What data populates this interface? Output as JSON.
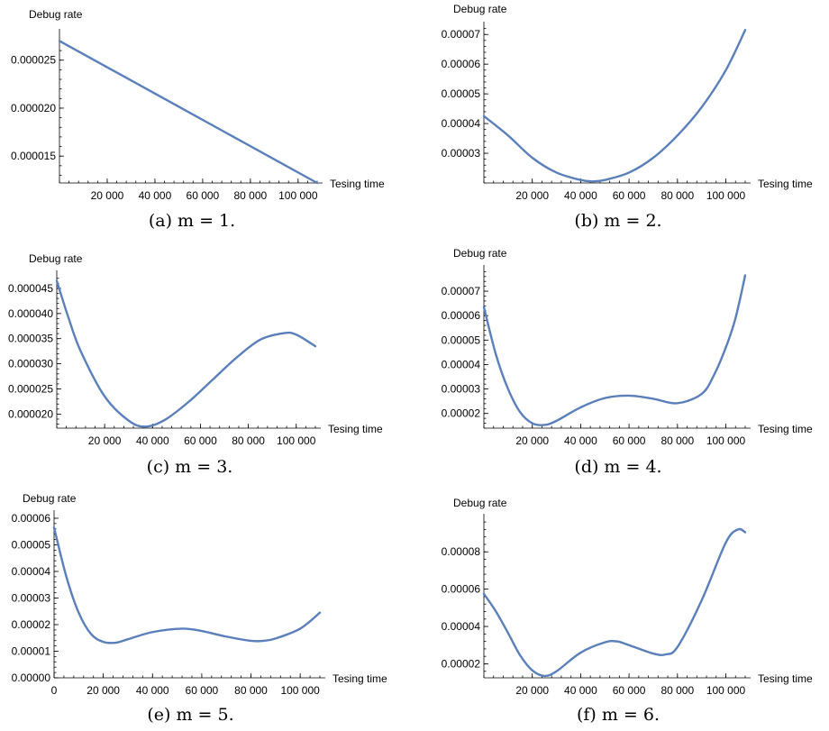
{
  "chart_data": [
    {
      "type": "line",
      "caption": "(a) m = 1.",
      "xlabel": "Tesing time",
      "ylabel": "Debug rate",
      "xlim": [
        0,
        108000
      ],
      "ylim": [
        1.22e-05,
        2.77e-05
      ],
      "xticks": [
        20000,
        40000,
        60000,
        80000,
        100000
      ],
      "xtick_labels": [
        "20 000",
        "40 000",
        "60 000",
        "80 000",
        "100 000"
      ],
      "yticks": [
        1.5e-05,
        2e-05,
        2.5e-05
      ],
      "ytick_labels": [
        "0.000015",
        "0.000020",
        "0.000025"
      ],
      "series": [
        {
          "x": [
            0,
            108000
          ],
          "y": [
            2.7e-05,
            1.22e-05
          ]
        }
      ]
    },
    {
      "type": "line",
      "caption": "(b) m = 2.",
      "xlabel": "Tesing time",
      "ylabel": "Debug rate",
      "xlim": [
        0,
        108000
      ],
      "ylim": [
        2e-05,
        7.25e-05
      ],
      "xticks": [
        20000,
        40000,
        60000,
        80000,
        100000
      ],
      "xtick_labels": [
        "20 000",
        "40 000",
        "60 000",
        "80 000",
        "100 000"
      ],
      "yticks": [
        3e-05,
        4e-05,
        5e-05,
        6e-05,
        7e-05
      ],
      "ytick_labels": [
        "0.00003",
        "0.00004",
        "0.00005",
        "0.00006",
        "0.00007"
      ],
      "series": [
        {
          "x": [
            0,
            10000,
            20000,
            30000,
            40000,
            45000,
            50000,
            60000,
            70000,
            80000,
            90000,
            100000,
            108000
          ],
          "y": [
            4.25e-05,
            3.6e-05,
            2.85e-05,
            2.35e-05,
            2.1e-05,
            2.05e-05,
            2.1e-05,
            2.35e-05,
            2.85e-05,
            3.6e-05,
            4.55e-05,
            5.8e-05,
            7.15e-05
          ]
        }
      ]
    },
    {
      "type": "line",
      "caption": "(c) m = 3.",
      "xlabel": "Tesing time",
      "ylabel": "Debug rate",
      "xlim": [
        0,
        108000
      ],
      "ylim": [
        1.72e-05,
        4.75e-05
      ],
      "xticks": [
        20000,
        40000,
        60000,
        80000,
        100000
      ],
      "xtick_labels": [
        "20 000",
        "40 000",
        "60 000",
        "80 000",
        "100 000"
      ],
      "yticks": [
        2e-05,
        2.5e-05,
        3e-05,
        3.5e-05,
        4e-05,
        4.5e-05
      ],
      "ytick_labels": [
        "0.000020",
        "0.000025",
        "0.000030",
        "0.000035",
        "0.000040",
        "0.000045"
      ],
      "series": [
        {
          "x": [
            0,
            5000,
            10000,
            20000,
            30000,
            37000,
            45000,
            55000,
            65000,
            75000,
            85000,
            95000,
            100000,
            108000
          ],
          "y": [
            4.65e-05,
            3.9e-05,
            3.25e-05,
            2.35e-05,
            1.87e-05,
            1.75e-05,
            1.88e-05,
            2.24e-05,
            2.68e-05,
            3.12e-05,
            3.48e-05,
            3.61e-05,
            3.58e-05,
            3.35e-05
          ]
        }
      ]
    },
    {
      "type": "line",
      "caption": "(d) m = 4.",
      "xlabel": "Tesing time",
      "ylabel": "Debug rate",
      "xlim": [
        0,
        108000
      ],
      "ylim": [
        1.4e-05,
        7.85e-05
      ],
      "xticks": [
        20000,
        40000,
        60000,
        80000,
        100000
      ],
      "xtick_labels": [
        "20 000",
        "40 000",
        "60 000",
        "80 000",
        "100 000"
      ],
      "yticks": [
        2e-05,
        3e-05,
        4e-05,
        5e-05,
        6e-05,
        7e-05
      ],
      "ytick_labels": [
        "0.00002",
        "0.00003",
        "0.00004",
        "0.00005",
        "0.00006",
        "0.00007"
      ],
      "series": [
        {
          "x": [
            0,
            5000,
            10000,
            15000,
            20000,
            25000,
            30000,
            40000,
            50000,
            60000,
            70000,
            80000,
            90000,
            95000,
            100000,
            104000,
            108000
          ],
          "y": [
            6.35e-05,
            4.4e-05,
            3e-05,
            2.05e-05,
            1.6e-05,
            1.53e-05,
            1.7e-05,
            2.25e-05,
            2.63e-05,
            2.73e-05,
            2.6e-05,
            2.42e-05,
            2.8e-05,
            3.55e-05,
            4.7e-05,
            5.9e-05,
            7.65e-05
          ]
        }
      ]
    },
    {
      "type": "line",
      "caption": "(e) m = 5.",
      "xlabel": "Tesing time",
      "ylabel": "Debug rate",
      "xlim": [
        0,
        108000
      ],
      "ylim": [
        0,
        6.1e-05
      ],
      "xticks": [
        0,
        20000,
        40000,
        60000,
        80000,
        100000
      ],
      "xtick_labels": [
        "0",
        "20 000",
        "40 000",
        "60 000",
        "80 000",
        "100 000"
      ],
      "yticks": [
        0,
        1e-05,
        2e-05,
        3e-05,
        4e-05,
        5e-05,
        6e-05
      ],
      "ytick_labels": [
        "0.00000",
        "0.00001",
        "0.00002",
        "0.00003",
        "0.00004",
        "0.00005",
        "0.00006"
      ],
      "series": [
        {
          "x": [
            0,
            5000,
            10000,
            15000,
            20000,
            25000,
            30000,
            40000,
            52000,
            60000,
            70000,
            80000,
            85000,
            90000,
            100000,
            108000
          ],
          "y": [
            5.65e-05,
            3.8e-05,
            2.45e-05,
            1.65e-05,
            1.35e-05,
            1.32e-05,
            1.45e-05,
            1.72e-05,
            1.85e-05,
            1.76e-05,
            1.55e-05,
            1.39e-05,
            1.39e-05,
            1.48e-05,
            1.85e-05,
            2.45e-05
          ]
        }
      ]
    },
    {
      "type": "line",
      "caption": "(f) m = 6.",
      "xlabel": "Tesing time",
      "ylabel": "Debug rate",
      "xlim": [
        0,
        108000
      ],
      "ylim": [
        1.25e-05,
        9.75e-05
      ],
      "xticks": [
        20000,
        40000,
        60000,
        80000,
        100000
      ],
      "xtick_labels": [
        "20 000",
        "40 000",
        "60 000",
        "80 000",
        "100 000"
      ],
      "yticks": [
        2e-05,
        4e-05,
        6e-05,
        8e-05
      ],
      "ytick_labels": [
        "0.00002",
        "0.00004",
        "0.00006",
        "0.00008"
      ],
      "series": [
        {
          "x": [
            0,
            5000,
            10000,
            15000,
            20000,
            25000,
            30000,
            40000,
            50000,
            55000,
            60000,
            70000,
            75000,
            80000,
            90000,
            100000,
            105000,
            108000
          ],
          "y": [
            5.75e-05,
            4.8e-05,
            3.65e-05,
            2.45e-05,
            1.65e-05,
            1.35e-05,
            1.6e-05,
            2.6e-05,
            3.15e-05,
            3.2e-05,
            3e-05,
            2.55e-05,
            2.5e-05,
            2.9e-05,
            5.4e-05,
            8.5e-05,
            9.2e-05,
            9.05e-05
          ]
        }
      ]
    }
  ]
}
